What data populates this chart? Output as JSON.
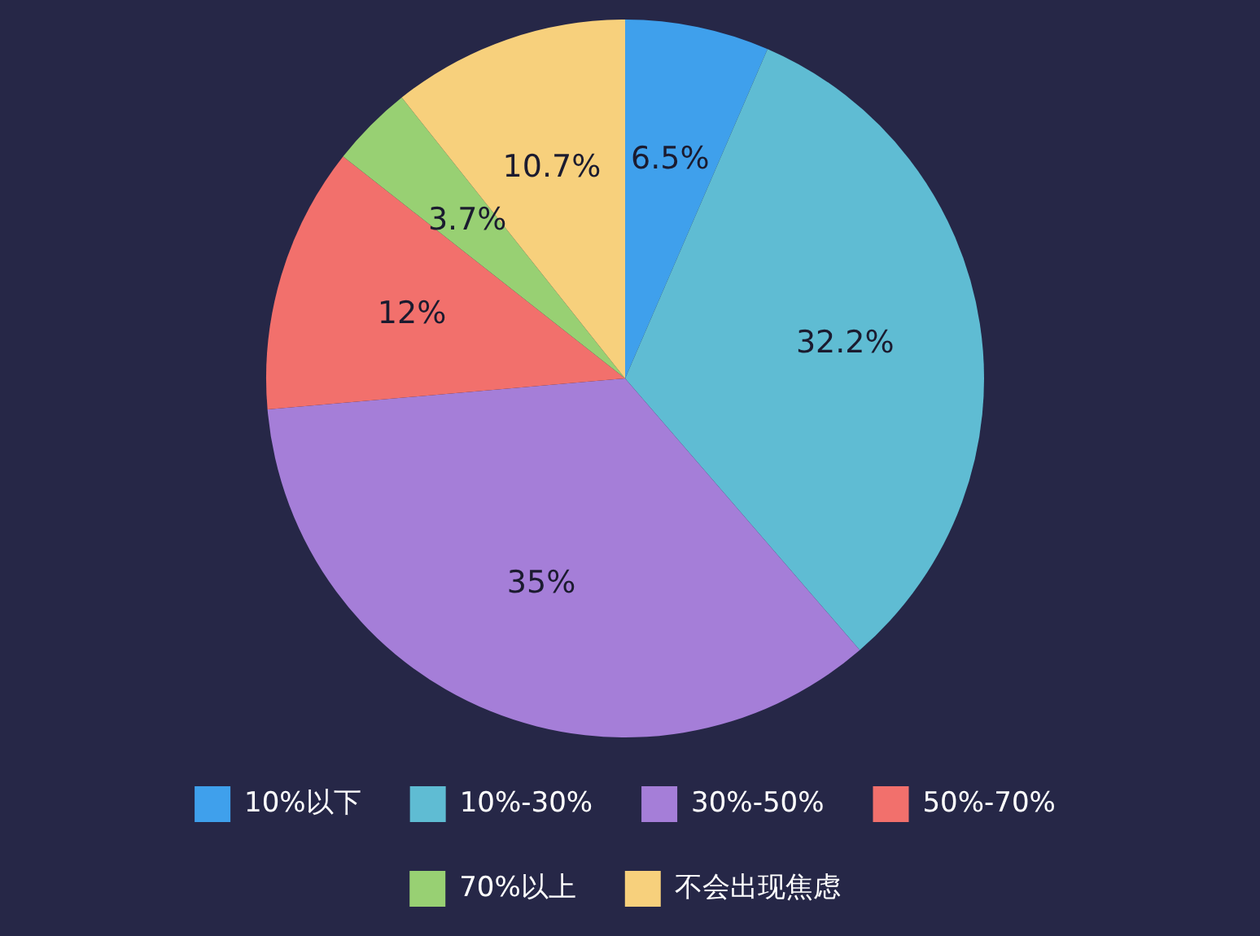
{
  "chart_data": {
    "type": "pie",
    "categories": [
      "10%以下",
      "10%-30%",
      "30%-50%",
      "50%-70%",
      "70%以上",
      "不会出现焦虑"
    ],
    "values": [
      6.5,
      32.2,
      35,
      12,
      3.7,
      10.7
    ],
    "colors": [
      "#3fa0ec",
      "#5fbcd3",
      "#a57ed8",
      "#f2706c",
      "#98d073",
      "#f7d07c"
    ],
    "value_labels": [
      "6.5%",
      "32.2%",
      "35%",
      "12%",
      "3.7%",
      "10.7%"
    ],
    "legend": "bottom"
  }
}
